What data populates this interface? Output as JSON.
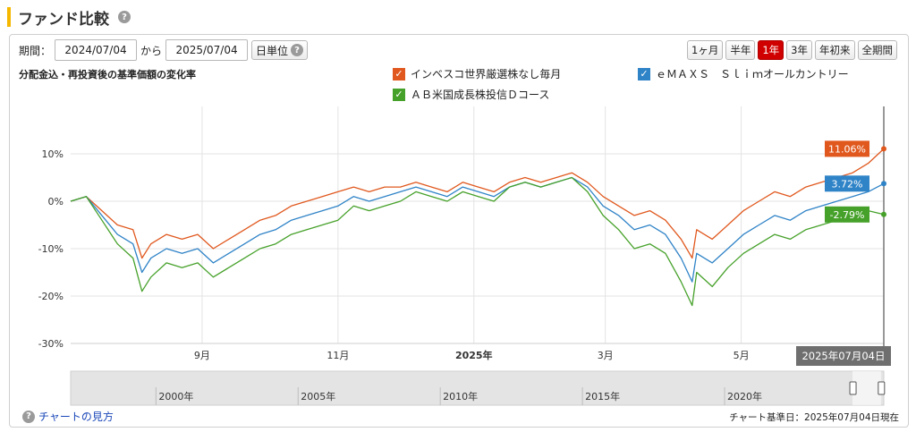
{
  "header": {
    "title": "ファンド比較",
    "help_icon": "?"
  },
  "controls": {
    "period_label": "期間：",
    "start_date": "2024/07/04",
    "separator": "から",
    "end_date": "2025/07/04",
    "unit_label": "日単位",
    "range_buttons": [
      "1ヶ月",
      "半年",
      "1年",
      "3年",
      "年初来",
      "全期間"
    ],
    "active_range": "1年"
  },
  "chart_subtitle": "分配金込・再投資後の基準価額の変化率",
  "link": {
    "icon": "?",
    "label": "チャートの見方"
  },
  "footnote": "チャート基準日：2025年07月04日現在",
  "chart_data": {
    "type": "line",
    "title": "分配金込・再投資後の基準価額の変化率",
    "x_range": [
      "2024-07-04",
      "2025-07-04"
    ],
    "ylim": [
      -30,
      20
    ],
    "y_ticks": [
      "10%",
      "0%",
      "-10%",
      "-20%",
      "-30%"
    ],
    "y_tick_values": [
      10,
      0,
      -10,
      -20,
      -30
    ],
    "x_ticks": [
      {
        "date": "2024-09-01",
        "label": "9月",
        "bold": false
      },
      {
        "date": "2024-11-01",
        "label": "11月",
        "bold": false
      },
      {
        "date": "2025-01-01",
        "label": "2025年",
        "bold": true
      },
      {
        "date": "2025-03-01",
        "label": "3月",
        "bold": false
      },
      {
        "date": "2025-05-01",
        "label": "5月",
        "bold": false
      }
    ],
    "grid": true,
    "legend_placement": "top",
    "cursor_label": "2025年07月04日",
    "series": [
      {
        "name": "インベスコ世界厳選株なし毎月",
        "color": "#e0581e",
        "end_label": "11.06%",
        "points": [
          [
            "2024-07-04",
            0
          ],
          [
            "2024-07-11",
            1
          ],
          [
            "2024-07-18",
            -2
          ],
          [
            "2024-07-25",
            -5
          ],
          [
            "2024-08-01",
            -6
          ],
          [
            "2024-08-05",
            -12
          ],
          [
            "2024-08-09",
            -9
          ],
          [
            "2024-08-16",
            -7
          ],
          [
            "2024-08-23",
            -8
          ],
          [
            "2024-08-30",
            -7
          ],
          [
            "2024-09-06",
            -10
          ],
          [
            "2024-09-13",
            -8
          ],
          [
            "2024-09-20",
            -6
          ],
          [
            "2024-09-27",
            -4
          ],
          [
            "2024-10-04",
            -3
          ],
          [
            "2024-10-11",
            -1
          ],
          [
            "2024-10-18",
            0
          ],
          [
            "2024-10-25",
            1
          ],
          [
            "2024-11-01",
            2
          ],
          [
            "2024-11-08",
            3
          ],
          [
            "2024-11-15",
            2
          ],
          [
            "2024-11-22",
            3
          ],
          [
            "2024-11-29",
            3
          ],
          [
            "2024-12-06",
            4
          ],
          [
            "2024-12-13",
            3
          ],
          [
            "2024-12-20",
            2
          ],
          [
            "2024-12-27",
            4
          ],
          [
            "2025-01-03",
            3
          ],
          [
            "2025-01-10",
            2
          ],
          [
            "2025-01-17",
            4
          ],
          [
            "2025-01-24",
            5
          ],
          [
            "2025-01-31",
            4
          ],
          [
            "2025-02-07",
            5
          ],
          [
            "2025-02-14",
            6
          ],
          [
            "2025-02-21",
            4
          ],
          [
            "2025-02-28",
            1
          ],
          [
            "2025-03-07",
            -1
          ],
          [
            "2025-03-14",
            -3
          ],
          [
            "2025-03-21",
            -2
          ],
          [
            "2025-03-28",
            -4
          ],
          [
            "2025-04-04",
            -8
          ],
          [
            "2025-04-09",
            -12
          ],
          [
            "2025-04-11",
            -6
          ],
          [
            "2025-04-18",
            -8
          ],
          [
            "2025-04-25",
            -5
          ],
          [
            "2025-05-02",
            -2
          ],
          [
            "2025-05-09",
            0
          ],
          [
            "2025-05-16",
            2
          ],
          [
            "2025-05-23",
            1
          ],
          [
            "2025-05-30",
            3
          ],
          [
            "2025-06-06",
            4
          ],
          [
            "2025-06-13",
            5
          ],
          [
            "2025-06-20",
            6
          ],
          [
            "2025-06-27",
            8
          ],
          [
            "2025-07-04",
            11.06
          ]
        ]
      },
      {
        "name": "ｅＭＡＸＳ　Ｓｌｉｍオールカントリー",
        "color": "#2f83c7",
        "end_label": "3.72%",
        "points": [
          [
            "2024-07-04",
            0
          ],
          [
            "2024-07-11",
            1
          ],
          [
            "2024-07-18",
            -3
          ],
          [
            "2024-07-25",
            -7
          ],
          [
            "2024-08-01",
            -9
          ],
          [
            "2024-08-05",
            -15
          ],
          [
            "2024-08-09",
            -12
          ],
          [
            "2024-08-16",
            -10
          ],
          [
            "2024-08-23",
            -11
          ],
          [
            "2024-08-30",
            -10
          ],
          [
            "2024-09-06",
            -13
          ],
          [
            "2024-09-13",
            -11
          ],
          [
            "2024-09-20",
            -9
          ],
          [
            "2024-09-27",
            -7
          ],
          [
            "2024-10-04",
            -6
          ],
          [
            "2024-10-11",
            -4
          ],
          [
            "2024-10-18",
            -3
          ],
          [
            "2024-10-25",
            -2
          ],
          [
            "2024-11-01",
            -1
          ],
          [
            "2024-11-08",
            1
          ],
          [
            "2024-11-15",
            0
          ],
          [
            "2024-11-22",
            1
          ],
          [
            "2024-11-29",
            2
          ],
          [
            "2024-12-06",
            3
          ],
          [
            "2024-12-13",
            2
          ],
          [
            "2024-12-20",
            1
          ],
          [
            "2024-12-27",
            3
          ],
          [
            "2025-01-03",
            2
          ],
          [
            "2025-01-10",
            1
          ],
          [
            "2025-01-17",
            3
          ],
          [
            "2025-01-24",
            4
          ],
          [
            "2025-01-31",
            3
          ],
          [
            "2025-02-07",
            4
          ],
          [
            "2025-02-14",
            5
          ],
          [
            "2025-02-21",
            3
          ],
          [
            "2025-02-28",
            -1
          ],
          [
            "2025-03-07",
            -3
          ],
          [
            "2025-03-14",
            -6
          ],
          [
            "2025-03-21",
            -5
          ],
          [
            "2025-03-28",
            -7
          ],
          [
            "2025-04-04",
            -12
          ],
          [
            "2025-04-09",
            -17
          ],
          [
            "2025-04-11",
            -11
          ],
          [
            "2025-04-18",
            -13
          ],
          [
            "2025-04-25",
            -10
          ],
          [
            "2025-05-02",
            -7
          ],
          [
            "2025-05-09",
            -5
          ],
          [
            "2025-05-16",
            -3
          ],
          [
            "2025-05-23",
            -4
          ],
          [
            "2025-05-30",
            -2
          ],
          [
            "2025-06-06",
            -1
          ],
          [
            "2025-06-13",
            0
          ],
          [
            "2025-06-20",
            1
          ],
          [
            "2025-06-27",
            2
          ],
          [
            "2025-07-04",
            3.72
          ]
        ]
      },
      {
        "name": "ＡＢ米国成長株投信Ｄコース",
        "color": "#46a12a",
        "end_label": "-2.79%",
        "points": [
          [
            "2024-07-04",
            0
          ],
          [
            "2024-07-11",
            1
          ],
          [
            "2024-07-18",
            -4
          ],
          [
            "2024-07-25",
            -9
          ],
          [
            "2024-08-01",
            -12
          ],
          [
            "2024-08-05",
            -19
          ],
          [
            "2024-08-09",
            -16
          ],
          [
            "2024-08-16",
            -13
          ],
          [
            "2024-08-23",
            -14
          ],
          [
            "2024-08-30",
            -13
          ],
          [
            "2024-09-06",
            -16
          ],
          [
            "2024-09-13",
            -14
          ],
          [
            "2024-09-20",
            -12
          ],
          [
            "2024-09-27",
            -10
          ],
          [
            "2024-10-04",
            -9
          ],
          [
            "2024-10-11",
            -7
          ],
          [
            "2024-10-18",
            -6
          ],
          [
            "2024-10-25",
            -5
          ],
          [
            "2024-11-01",
            -4
          ],
          [
            "2024-11-08",
            -1
          ],
          [
            "2024-11-15",
            -2
          ],
          [
            "2024-11-22",
            -1
          ],
          [
            "2024-11-29",
            0
          ],
          [
            "2024-12-06",
            2
          ],
          [
            "2024-12-13",
            1
          ],
          [
            "2024-12-20",
            0
          ],
          [
            "2024-12-27",
            2
          ],
          [
            "2025-01-03",
            1
          ],
          [
            "2025-01-10",
            0
          ],
          [
            "2025-01-17",
            3
          ],
          [
            "2025-01-24",
            4
          ],
          [
            "2025-01-31",
            3
          ],
          [
            "2025-02-07",
            4
          ],
          [
            "2025-02-14",
            5
          ],
          [
            "2025-02-21",
            2
          ],
          [
            "2025-02-28",
            -3
          ],
          [
            "2025-03-07",
            -6
          ],
          [
            "2025-03-14",
            -10
          ],
          [
            "2025-03-21",
            -9
          ],
          [
            "2025-03-28",
            -11
          ],
          [
            "2025-04-04",
            -17
          ],
          [
            "2025-04-09",
            -22
          ],
          [
            "2025-04-11",
            -15
          ],
          [
            "2025-04-18",
            -18
          ],
          [
            "2025-04-25",
            -14
          ],
          [
            "2025-05-02",
            -11
          ],
          [
            "2025-05-09",
            -9
          ],
          [
            "2025-05-16",
            -7
          ],
          [
            "2025-05-23",
            -8
          ],
          [
            "2025-05-30",
            -6
          ],
          [
            "2025-06-06",
            -5
          ],
          [
            "2025-06-13",
            -4
          ],
          [
            "2025-06-20",
            -3
          ],
          [
            "2025-06-27",
            -2
          ],
          [
            "2025-07-04",
            -2.79
          ]
        ]
      }
    ],
    "navigator": {
      "x_ticks": [
        "2000年",
        "2005年",
        "2010年",
        "2015年",
        "2020年"
      ],
      "x_tick_years": [
        2000,
        2005,
        2010,
        2015,
        2020
      ],
      "year_range": [
        1997,
        2025.6
      ],
      "selected_range": [
        2024.5,
        2025.5
      ]
    }
  }
}
